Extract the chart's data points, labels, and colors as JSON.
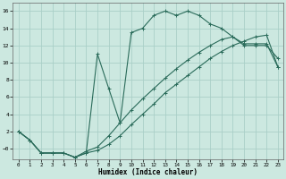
{
  "xlabel": "Humidex (Indice chaleur)",
  "bg_color": "#cce8e0",
  "grid_color": "#aacfc8",
  "line_color": "#2a6b5a",
  "xlim": [
    -0.5,
    23.5
  ],
  "ylim": [
    -1.2,
    17
  ],
  "xticks": [
    0,
    1,
    2,
    3,
    4,
    5,
    6,
    7,
    8,
    9,
    10,
    11,
    12,
    13,
    14,
    15,
    16,
    17,
    18,
    19,
    20,
    21,
    22,
    23
  ],
  "yticks": [
    0,
    2,
    4,
    6,
    8,
    10,
    12,
    14,
    16
  ],
  "ytick_labels": [
    "−0",
    "2",
    "4",
    "6",
    "8",
    "10",
    "12",
    "14",
    "16"
  ],
  "curve1_x": [
    0,
    1,
    2,
    3,
    4,
    5,
    6,
    7,
    8,
    9,
    10,
    11,
    12,
    13,
    14,
    15,
    16,
    17,
    18,
    19,
    20,
    21,
    22,
    23
  ],
  "curve1_y": [
    2,
    1,
    -0.5,
    -0.5,
    -0.5,
    -1.0,
    -0.5,
    11.0,
    7.0,
    3.0,
    13.5,
    14.0,
    15.5,
    16.0,
    15.5,
    16.0,
    15.5,
    14.5,
    14.0,
    13.0,
    12.0,
    12.0,
    12.0,
    10.5
  ],
  "curve2_x": [
    0,
    1,
    2,
    3,
    4,
    5,
    6,
    7,
    8,
    9,
    10,
    11,
    12,
    13,
    14,
    15,
    16,
    17,
    18,
    19,
    20,
    21,
    22,
    23
  ],
  "curve2_y": [
    2,
    1,
    -0.5,
    -0.5,
    -0.5,
    -1.0,
    -0.3,
    0.2,
    1.5,
    3.0,
    4.5,
    5.8,
    7.0,
    8.2,
    9.3,
    10.3,
    11.2,
    12.0,
    12.7,
    13.0,
    12.2,
    12.2,
    12.2,
    9.5
  ],
  "curve3_x": [
    0,
    1,
    2,
    3,
    4,
    5,
    6,
    7,
    8,
    9,
    10,
    11,
    12,
    13,
    14,
    15,
    16,
    17,
    18,
    19,
    20,
    21,
    22,
    23
  ],
  "curve3_y": [
    2,
    1,
    -0.5,
    -0.5,
    -0.5,
    -1.0,
    -0.5,
    -0.2,
    0.5,
    1.5,
    2.8,
    4.0,
    5.2,
    6.5,
    7.5,
    8.5,
    9.5,
    10.5,
    11.3,
    12.0,
    12.5,
    13.0,
    13.2,
    9.5
  ]
}
